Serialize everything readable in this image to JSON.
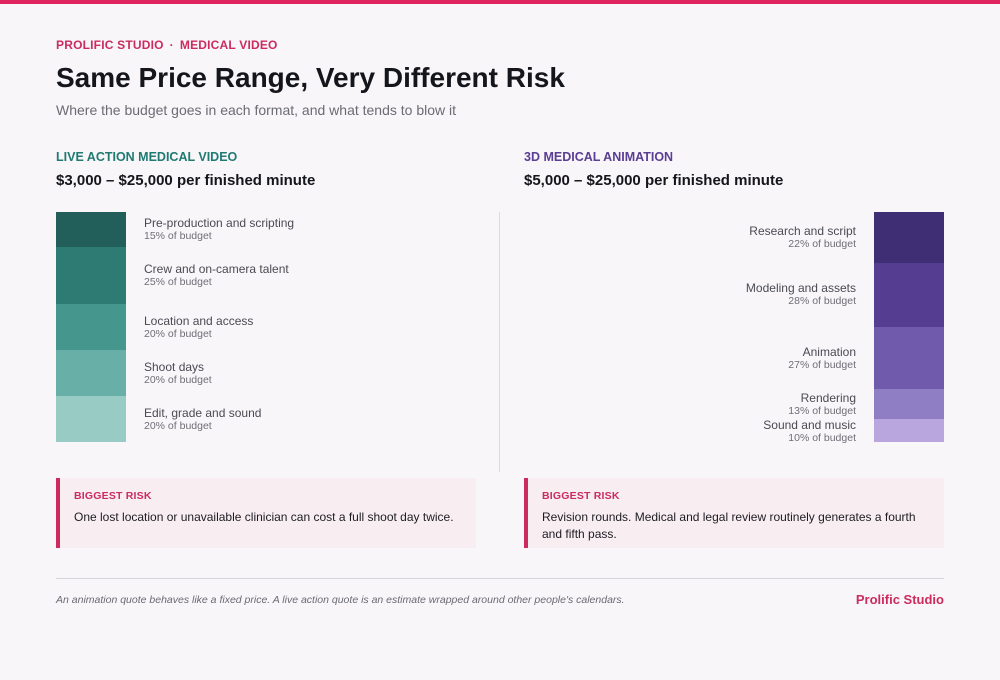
{
  "header": {
    "eyebrow_left": "PROLIFIC STUDIO",
    "eyebrow_sep": "·",
    "eyebrow_right": "MEDICAL VIDEO",
    "title": "Same Price Range, Very Different Risk",
    "subtitle": "Where the budget goes in each format, and what tends to blow it"
  },
  "colors": {
    "accent": "#e0245e",
    "live_heading": "#1f7a72",
    "anim_heading": "#5a3e94"
  },
  "chart_data": [
    {
      "type": "bar",
      "label": "LIVE ACTION MEDICAL VIDEO",
      "price": "$3,000 – $25,000 per finished minute",
      "categories": [
        "Pre-production and scripting",
        "Crew and on-camera talent",
        "Location and access",
        "Shoot days",
        "Edit, grade and sound"
      ],
      "values": [
        15,
        25,
        20,
        20,
        20
      ],
      "value_labels": [
        "15% of budget",
        "25% of budget",
        "20% of budget",
        "20% of budget",
        "20% of budget"
      ],
      "colors": [
        "#235f5a",
        "#2e7b73",
        "#45968d",
        "#68b0a7",
        "#98cbc3"
      ],
      "risk_heading": "BIGGEST RISK",
      "risk_text": "One lost location or unavailable clinician can cost a full shoot day twice."
    },
    {
      "type": "bar",
      "label": "3D MEDICAL ANIMATION",
      "price": "$5,000 – $25,000 per finished minute",
      "categories": [
        "Research and script",
        "Modeling and assets",
        "Animation",
        "Rendering",
        "Sound and music"
      ],
      "values": [
        22,
        28,
        27,
        13,
        10
      ],
      "value_labels": [
        "22% of budget",
        "28% of budget",
        "27% of budget",
        "13% of budget",
        "10% of budget"
      ],
      "colors": [
        "#3f2e73",
        "#553e92",
        "#705aab",
        "#907ec4",
        "#b9a6df"
      ],
      "risk_heading": "BIGGEST RISK",
      "risk_text": "Revision rounds. Medical and legal review routinely generates a fourth and fifth pass."
    }
  ],
  "footer": {
    "note": "An animation quote behaves like a fixed price. A live action quote is an estimate wrapped around other people's calendars.",
    "brand": "Prolific Studio"
  }
}
